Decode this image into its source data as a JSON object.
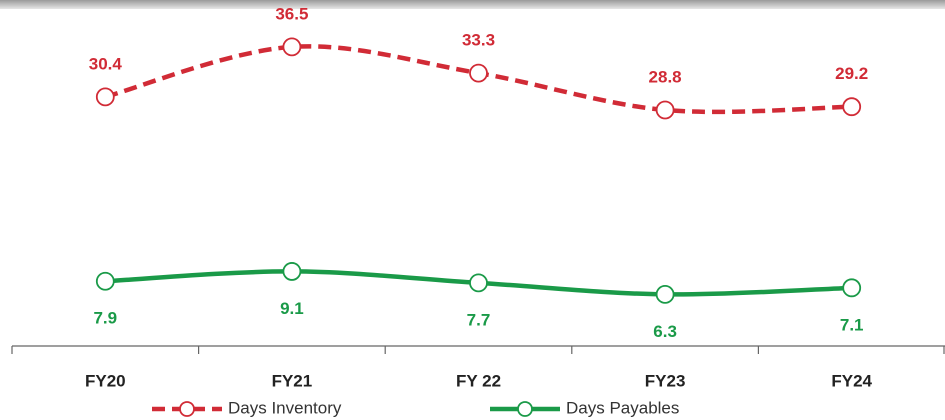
{
  "chart_data": {
    "type": "line",
    "categories": [
      "FY20",
      "FY21",
      "FY 22",
      "FY23",
      "FY24"
    ],
    "series": [
      {
        "name": "Days Inventory",
        "color": "#d12b36",
        "dash": true,
        "values": [
          30.4,
          36.5,
          33.3,
          28.8,
          29.2
        ]
      },
      {
        "name": "Days Payables",
        "color": "#1a9a48",
        "dash": false,
        "values": [
          7.9,
          9.1,
          7.7,
          6.3,
          7.1
        ]
      }
    ],
    "ylim": [
      0,
      41
    ]
  }
}
